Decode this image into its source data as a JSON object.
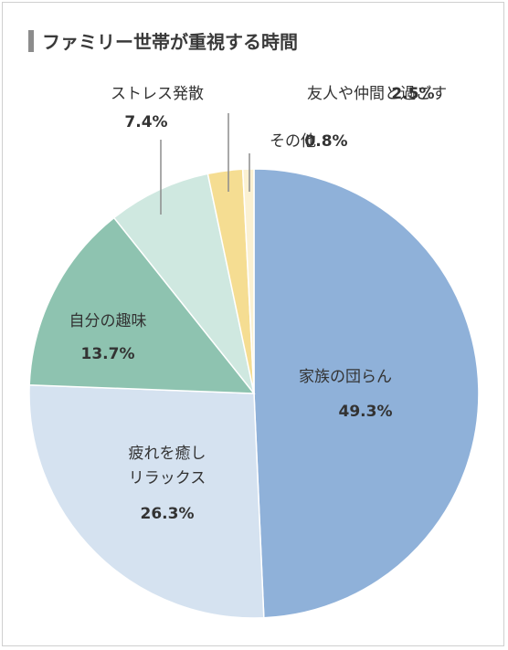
{
  "title": "ファミリー世帯が重視する時間",
  "colors": {
    "title_bar": "#8c8c8c",
    "leader_line": "#8c8c8c"
  },
  "chart_data": {
    "type": "pie",
    "title": "ファミリー世帯が重視する時間",
    "start": "12 o'clock, clockwise",
    "slices": [
      {
        "label": "家族の団らん",
        "value": 49.3,
        "value_label": "49.3%",
        "color": "#8fb1d9"
      },
      {
        "label": "疲れを癒しリラックス",
        "label_lines": [
          "疲れを癒し",
          "リラックス"
        ],
        "value": 26.3,
        "value_label": "26.3%",
        "color": "#d5e2f0"
      },
      {
        "label": "自分の趣味",
        "value": 13.7,
        "value_label": "13.7%",
        "color": "#8ec3b0"
      },
      {
        "label": "ストレス発散",
        "value": 7.4,
        "value_label": "7.4%",
        "color": "#cfe8e0"
      },
      {
        "label": "友人や仲間と過ごす",
        "value": 2.5,
        "value_label": "2.5%",
        "color": "#f5dd92"
      },
      {
        "label": "その他",
        "value": 0.8,
        "value_label": "0.8%",
        "color": "#fbf1d2"
      }
    ]
  }
}
